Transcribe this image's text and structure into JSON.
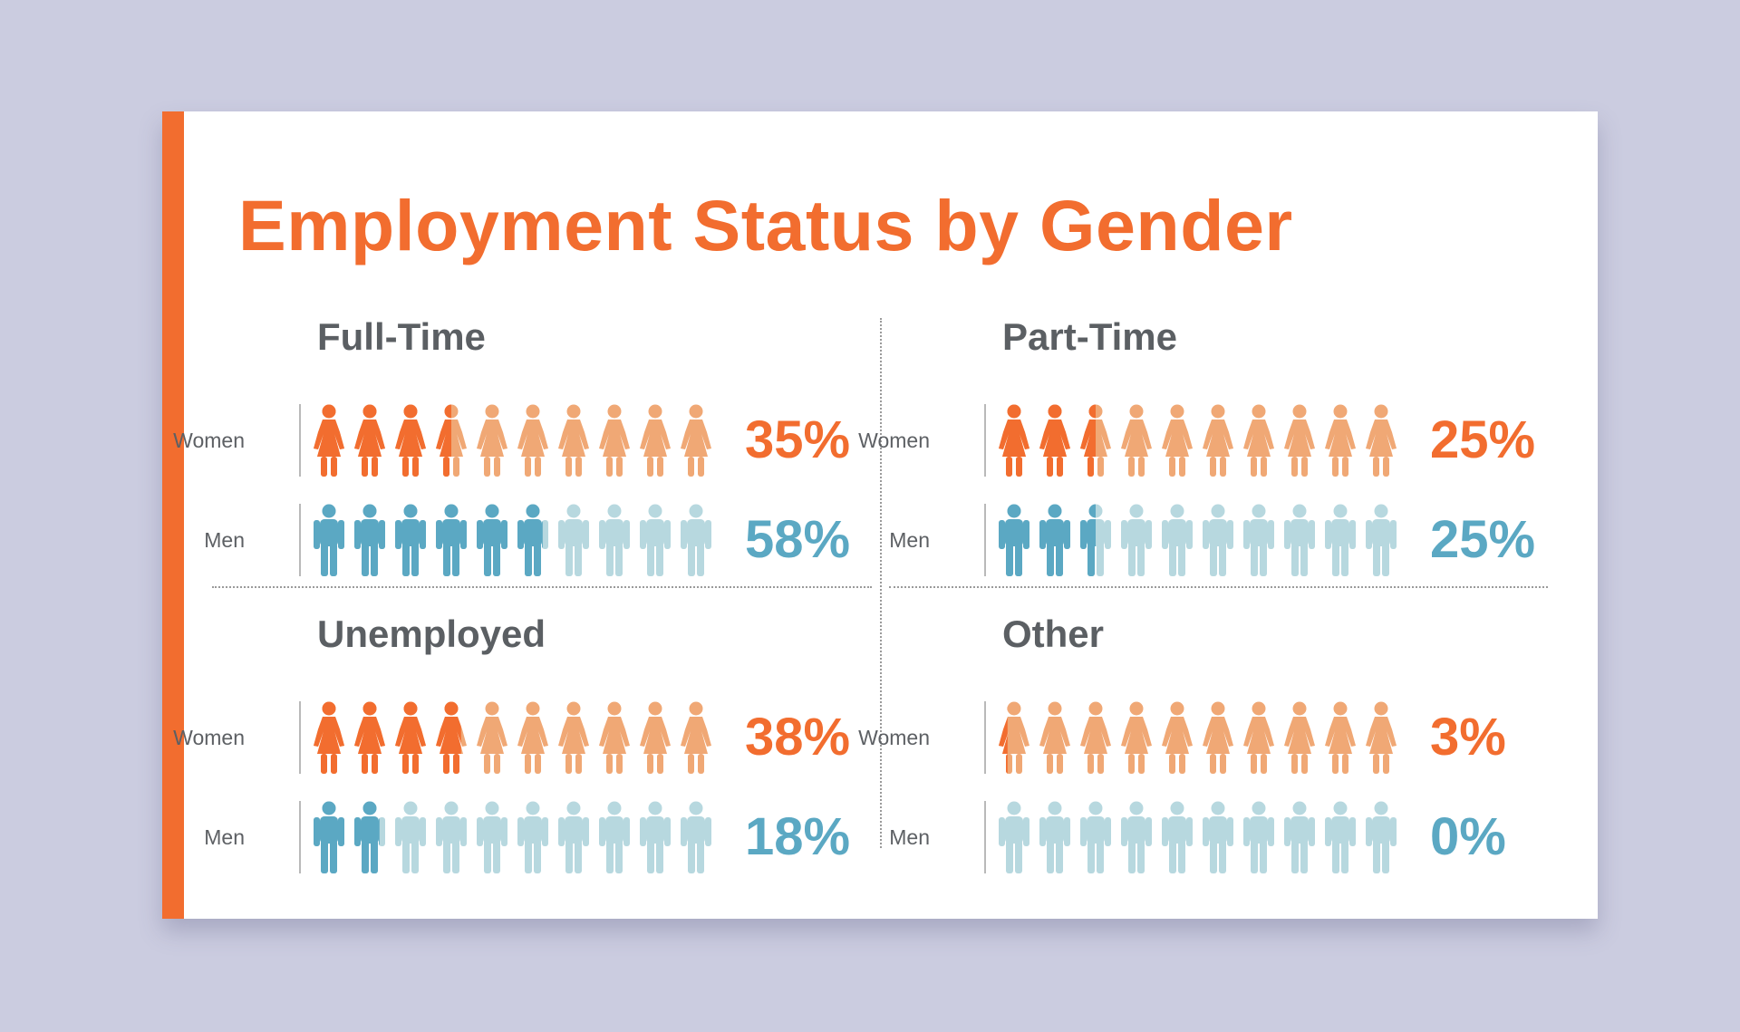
{
  "colors": {
    "background": "#cbcce0",
    "accent": "#f26d2f",
    "women_full": "#f26d2f",
    "women_light": "#f0a875",
    "men_full": "#5ba8c3",
    "men_light": "#b7d8df",
    "heading": "#5b5f63"
  },
  "icons": {
    "women": "woman-icon",
    "men": "man-icon"
  },
  "chart_data": {
    "type": "pictograph",
    "title": "Employment Status by Gender",
    "icons_per_row": 10,
    "unit": "%",
    "panels": [
      {
        "title": "Full-Time",
        "rows": [
          {
            "label": "Women",
            "value": 35,
            "display": "35%"
          },
          {
            "label": "Men",
            "value": 58,
            "display": "58%"
          }
        ]
      },
      {
        "title": "Part-Time",
        "rows": [
          {
            "label": "Women",
            "value": 25,
            "display": "25%"
          },
          {
            "label": "Men",
            "value": 25,
            "display": "25%"
          }
        ]
      },
      {
        "title": "Unemployed",
        "rows": [
          {
            "label": "Women",
            "value": 38,
            "display": "38%"
          },
          {
            "label": "Men",
            "value": 18,
            "display": "18%"
          }
        ]
      },
      {
        "title": "Other",
        "rows": [
          {
            "label": "Women",
            "value": 3,
            "display": "3%"
          },
          {
            "label": "Men",
            "value": 0,
            "display": "0%"
          }
        ]
      }
    ]
  }
}
